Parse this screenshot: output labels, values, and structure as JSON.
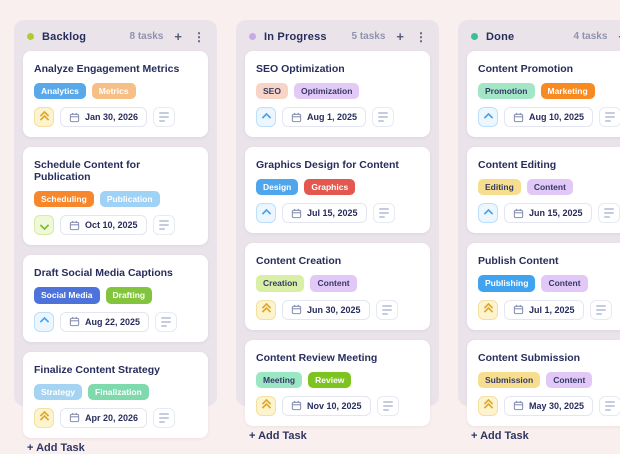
{
  "ui": {
    "plus_icon": "+",
    "kebab_icon": "⋮",
    "background_color": "#FAEFEF",
    "column_color": "#EAE3EA"
  },
  "board": {
    "columns": [
      {
        "name": "Backlog",
        "dot_color": "#B0CC35",
        "task_count": "8 tasks",
        "add_task_label": "+ Add Task",
        "cards": [
          {
            "title": "Analyze Engagement Metrics",
            "tags": [
              {
                "label": "Analytics",
                "bg": "#58A8EA",
                "fg": "#FFFFFF"
              },
              {
                "label": "Metrics",
                "bg": "#F6BF85",
                "fg": "#FFFFFF"
              }
            ],
            "priority": "high",
            "date": "Jan 30, 2026"
          },
          {
            "title": "Schedule Content for Publication",
            "tags": [
              {
                "label": "Scheduling",
                "bg": "#F6872C",
                "fg": "#FFFFFF"
              },
              {
                "label": "Publication",
                "bg": "#9FD2F4",
                "fg": "#FFFFFF"
              }
            ],
            "priority": "low",
            "date": "Oct 10, 2025"
          },
          {
            "title": "Draft Social Media Captions",
            "tags": [
              {
                "label": "Social Media",
                "bg": "#4D72DA",
                "fg": "#FFFFFF"
              },
              {
                "label": "Drafting",
                "bg": "#82C43C",
                "fg": "#FFFFFF"
              }
            ],
            "priority": "medium",
            "date": "Aug 22, 2025"
          },
          {
            "title": "Finalize Content Strategy",
            "tags": [
              {
                "label": "Strategy",
                "bg": "#A5D4F2",
                "fg": "#FFFFFF"
              },
              {
                "label": "Finalization",
                "bg": "#7ED9AC",
                "fg": "#FFFFFF"
              }
            ],
            "priority": "high",
            "date": "Apr 20, 2026"
          }
        ]
      },
      {
        "name": "In Progress",
        "dot_color": "#C9A8E8",
        "task_count": "5 tasks",
        "add_task_label": "+ Add Task",
        "cards": [
          {
            "title": "SEO Optimization",
            "tags": [
              {
                "label": "SEO",
                "bg": "#F7D4C5",
                "fg": "#343A68"
              },
              {
                "label": "Optimization",
                "bg": "#E3C9F6",
                "fg": "#343A68"
              }
            ],
            "priority": "medium",
            "date": "Aug 1, 2025"
          },
          {
            "title": "Graphics Design for Content",
            "tags": [
              {
                "label": "Design",
                "bg": "#4FA6EC",
                "fg": "#FFFFFF"
              },
              {
                "label": "Graphics",
                "bg": "#E4574E",
                "fg": "#FFFFFF"
              }
            ],
            "priority": "medium",
            "date": "Jul 15, 2025"
          },
          {
            "title": "Content Creation",
            "tags": [
              {
                "label": "Creation",
                "bg": "#D9EFA6",
                "fg": "#343A68"
              },
              {
                "label": "Content",
                "bg": "#E2C8F6",
                "fg": "#343A68"
              }
            ],
            "priority": "high",
            "date": "Jun 30, 2025"
          },
          {
            "title": "Content Review Meeting",
            "tags": [
              {
                "label": "Meeting",
                "bg": "#9BE6C3",
                "fg": "#343A68"
              },
              {
                "label": "Review",
                "bg": "#7EC421",
                "fg": "#FFFFFF"
              }
            ],
            "priority": "high",
            "date": "Nov 10, 2025"
          }
        ]
      },
      {
        "name": "Done",
        "dot_color": "#3DBE92",
        "task_count": "4 tasks",
        "add_task_label": "+ Add Task",
        "cards": [
          {
            "title": "Content Promotion",
            "tags": [
              {
                "label": "Promotion",
                "bg": "#A3E6C6",
                "fg": "#343A68"
              },
              {
                "label": "Marketing",
                "bg": "#F78B21",
                "fg": "#FFFFFF"
              }
            ],
            "priority": "medium",
            "date": "Aug 10, 2025"
          },
          {
            "title": "Content Editing",
            "tags": [
              {
                "label": "Editing",
                "bg": "#F7DD8E",
                "fg": "#343A68"
              },
              {
                "label": "Content",
                "bg": "#E2C8F6",
                "fg": "#343A68"
              }
            ],
            "priority": "medium",
            "date": "Jun 15, 2025"
          },
          {
            "title": "Publish Content",
            "tags": [
              {
                "label": "Publishing",
                "bg": "#3FA3F0",
                "fg": "#FFFFFF"
              },
              {
                "label": "Content",
                "bg": "#E2C8F6",
                "fg": "#343A68"
              }
            ],
            "priority": "high",
            "date": "Jul 1, 2025"
          },
          {
            "title": "Content Submission",
            "tags": [
              {
                "label": "Submission",
                "bg": "#F7DD8E",
                "fg": "#343A68"
              },
              {
                "label": "Content",
                "bg": "#E2C8F6",
                "fg": "#343A68"
              }
            ],
            "priority": "high",
            "date": "May 30, 2025"
          }
        ]
      }
    ]
  }
}
